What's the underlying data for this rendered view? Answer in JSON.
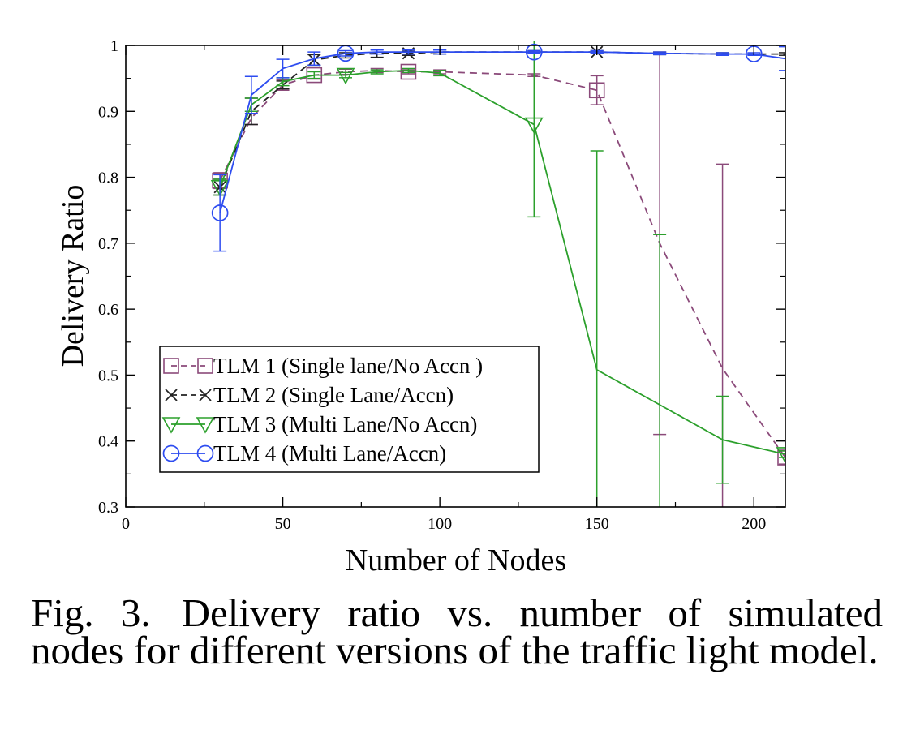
{
  "chart_data": {
    "type": "line",
    "title": "",
    "xlabel": "Number of Nodes",
    "ylabel": "Delivery Ratio",
    "xlim": [
      0,
      210
    ],
    "ylim": [
      0.3,
      1.0
    ],
    "xticks": [
      0,
      50,
      100,
      150,
      200
    ],
    "yticks": [
      0.3,
      0.4,
      0.5,
      0.6,
      0.7,
      0.8,
      0.9,
      1.0
    ],
    "xtick_labels": [
      "0",
      "50",
      "100",
      "150",
      "200"
    ],
    "ytick_labels": [
      "0.3",
      "0.4",
      "0.5",
      "0.6",
      "0.7",
      "0.8",
      "0.9",
      "1"
    ],
    "grid": false,
    "legend_position": "lower-left",
    "series": [
      {
        "name": "TLM 1 (Single lane/No Accn )",
        "color": "#8b4a7a",
        "dash": true,
        "marker": "square",
        "x": [
          30,
          40,
          50,
          60,
          70,
          80,
          90,
          100,
          130,
          150,
          170,
          190,
          210
        ],
        "y": [
          0.795,
          0.89,
          0.94,
          0.955,
          0.96,
          0.962,
          0.96,
          0.96,
          0.955,
          0.932,
          0.7,
          0.51,
          0.375
        ],
        "err": [
          0.012,
          0.01,
          0.008,
          0.006,
          0.004,
          0.003,
          0.003,
          0.003,
          0.002,
          0.022,
          0.29,
          0.31,
          0.01
        ],
        "markers_at": [
          30,
          60,
          90,
          150,
          210
        ]
      },
      {
        "name": "TLM 2 (Single Lane/Accn)",
        "color": "#222222",
        "dash": true,
        "marker": "x",
        "x": [
          30,
          40,
          50,
          60,
          70,
          80,
          90,
          100,
          130,
          150,
          170,
          190,
          210
        ],
        "y": [
          0.785,
          0.9,
          0.94,
          0.978,
          0.985,
          0.988,
          0.988,
          0.99,
          0.99,
          0.99,
          0.988,
          0.987,
          0.987
        ],
        "err": [
          0.012,
          0.02,
          0.006,
          0.008,
          0.004,
          0.006,
          0.003,
          0.003,
          0.002,
          0.002,
          0.002,
          0.002,
          0.002
        ],
        "markers_at": [
          30,
          60,
          90,
          150
        ]
      },
      {
        "name": "TLM 3 (Multi Lane/No Accn)",
        "color": "#2ca02c",
        "dash": false,
        "marker": "triangle-down",
        "x": [
          30,
          40,
          50,
          60,
          70,
          80,
          90,
          100,
          130,
          150,
          170,
          190,
          210
        ],
        "y": [
          0.785,
          0.91,
          0.945,
          0.955,
          0.955,
          0.96,
          0.962,
          0.958,
          0.88,
          0.508,
          0.455,
          0.402,
          0.38
        ],
        "err": [
          0.012,
          0.01,
          0.006,
          0.005,
          0.004,
          0.003,
          0.003,
          0.004,
          0.14,
          0.332,
          0.258,
          0.066,
          0.005
        ],
        "markers_at": [
          30,
          70,
          130,
          210
        ]
      },
      {
        "name": "TLM 4 (Multi Lane/Accn)",
        "color": "#2d4cf0",
        "dash": false,
        "marker": "circle",
        "x": [
          30,
          40,
          50,
          60,
          70,
          80,
          90,
          100,
          130,
          150,
          170,
          190,
          200,
          210
        ],
        "y": [
          0.746,
          0.925,
          0.965,
          0.98,
          0.988,
          0.99,
          0.99,
          0.99,
          0.99,
          0.99,
          0.988,
          0.987,
          0.987,
          0.98
        ],
        "err": [
          0.058,
          0.028,
          0.014,
          0.01,
          0.004,
          0.003,
          0.003,
          0.003,
          0.002,
          0.002,
          0.002,
          0.002,
          0.002,
          0.018
        ],
        "markers_at": [
          30,
          70,
          130,
          200
        ]
      }
    ]
  },
  "caption": {
    "label": "Fig. 3.",
    "text": "Delivery ratio vs. number of simulated nodes for different versions of the traffic light model."
  }
}
